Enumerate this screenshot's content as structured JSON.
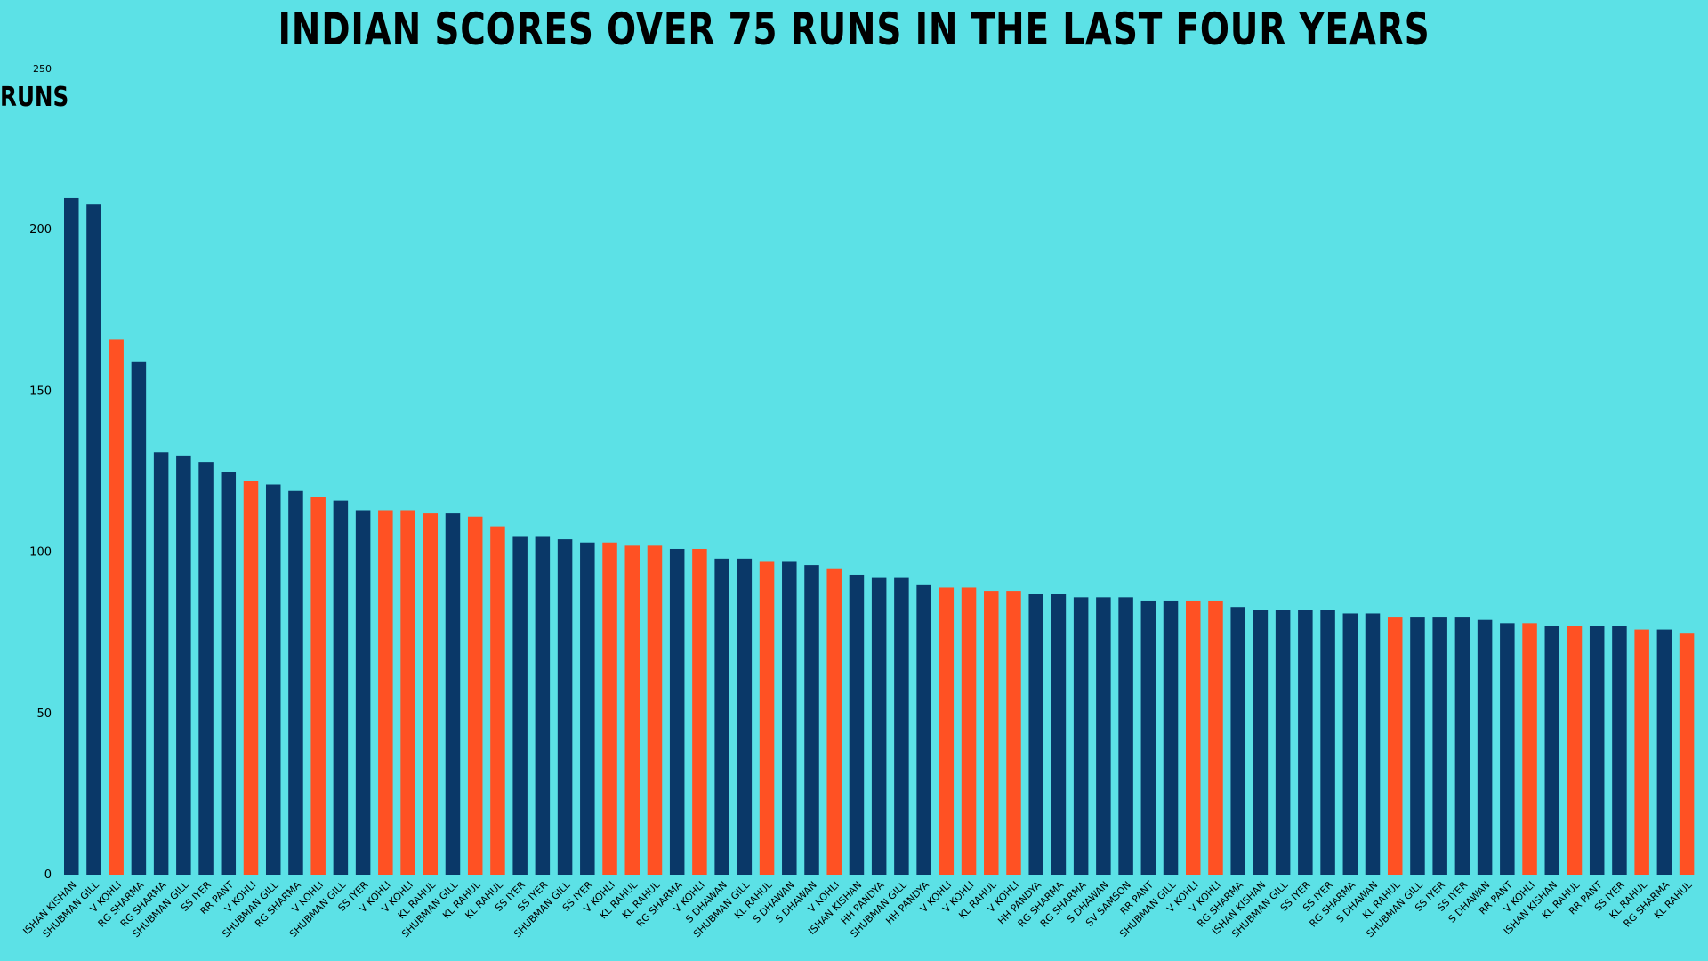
{
  "chart_data": {
    "type": "bar",
    "title": "INDIAN  SCORES OVER 75 RUNS IN THE LAST FOUR YEARS",
    "ylabel": "RUNS",
    "xlabel": "",
    "ylim": [
      0,
      250
    ],
    "yticks": [
      0,
      50,
      100,
      150,
      200,
      250
    ],
    "grid": false,
    "colors": {
      "default": "#0a3868",
      "highlight": "#ff5123",
      "background": "#5ce1e6"
    },
    "categories": [
      "ISHAN KISHAN",
      "SHUBMAN GILL",
      "V KOHLI",
      "RG SHARMA",
      "RG SHARMA",
      "SHUBMAN GILL",
      "SS IYER",
      "RR PANT",
      "V KOHLI",
      "SHUBMAN GILL",
      "RG SHARMA",
      "V KOHLI",
      "SHUBMAN GILL",
      "SS IYER",
      "V KOHLI",
      "V KOHLI",
      "KL RAHUL",
      "SHUBMAN GILL",
      "KL RAHUL",
      "KL RAHUL",
      "SS IYER",
      "SS IYER",
      "SHUBMAN GILL",
      "SS IYER",
      "V KOHLI",
      "KL RAHUL",
      "KL RAHUL",
      "RG SHARMA",
      "V KOHLI",
      "S DHAWAN",
      "SHUBMAN GILL",
      "KL RAHUL",
      "S DHAWAN",
      "S DHAWAN",
      "V KOHLI",
      "ISHAN KISHAN",
      "HH PANDYA",
      "SHUBMAN GILL",
      "HH PANDYA",
      "V KOHLI",
      "V KOHLI",
      "KL RAHUL",
      "V KOHLI",
      "HH PANDYA",
      "RG SHARMA",
      "RG SHARMA",
      "S DHAWAN",
      "SV SAMSON",
      "RR PANT",
      "SHUBMAN GILL",
      "V KOHLI",
      "V KOHLI",
      "RG SHARMA",
      "ISHAN KISHAN",
      "SHUBMAN GILL",
      "SS IYER",
      "SS IYER",
      "RG SHARMA",
      "S DHAWAN",
      "KL RAHUL",
      "SHUBMAN GILL",
      "SS IYER",
      "SS IYER",
      "S DHAWAN",
      "RR PANT",
      "V KOHLI",
      "ISHAN KISHAN",
      "KL RAHUL",
      "RR PANT",
      "SS IYER",
      "KL RAHUL",
      "RG SHARMA",
      "KL RAHUL"
    ],
    "values": [
      210,
      208,
      166,
      159,
      131,
      130,
      128,
      125,
      122,
      121,
      119,
      117,
      116,
      113,
      113,
      113,
      112,
      112,
      111,
      108,
      105,
      105,
      104,
      103,
      103,
      102,
      102,
      101,
      101,
      98,
      98,
      97,
      97,
      96,
      95,
      93,
      92,
      92,
      90,
      89,
      89,
      88,
      88,
      87,
      87,
      86,
      86,
      86,
      85,
      85,
      85,
      85,
      83,
      82,
      82,
      82,
      82,
      81,
      81,
      80,
      80,
      80,
      80,
      79,
      78,
      78,
      77,
      77,
      77,
      77,
      76,
      76,
      75
    ],
    "highlighted": [
      false,
      false,
      true,
      false,
      false,
      false,
      false,
      false,
      true,
      false,
      false,
      true,
      false,
      false,
      true,
      true,
      true,
      false,
      true,
      true,
      false,
      false,
      false,
      false,
      true,
      true,
      true,
      false,
      true,
      false,
      false,
      true,
      false,
      false,
      true,
      false,
      false,
      false,
      false,
      true,
      true,
      true,
      true,
      false,
      false,
      false,
      false,
      false,
      false,
      false,
      true,
      true,
      false,
      false,
      false,
      false,
      false,
      false,
      false,
      true,
      false,
      false,
      false,
      false,
      false,
      true,
      false,
      true,
      false,
      false,
      true,
      false,
      true
    ]
  }
}
